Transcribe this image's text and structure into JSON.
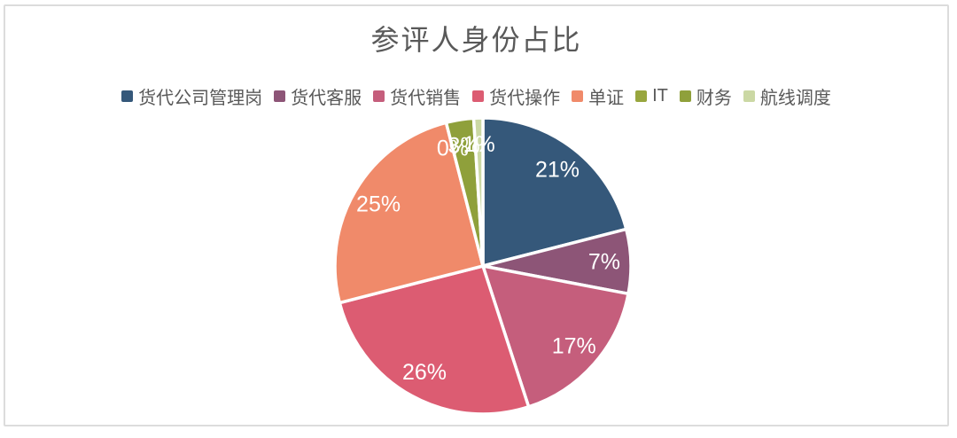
{
  "chart_data": {
    "type": "pie",
    "title": "参评人身份占比",
    "legend_position": "top",
    "direction": "clockwise",
    "start_angle_deg": 0,
    "data_labels": "percent-inside",
    "title_color": "#595959",
    "legend_text_color": "#595959",
    "label_color": "#ffffff",
    "slices": [
      {
        "label": "货代公司管理岗",
        "value": 21,
        "display": "21%",
        "color": "#35587A"
      },
      {
        "label": "货代客服",
        "value": 7,
        "display": "7%",
        "color": "#8D5577"
      },
      {
        "label": "货代销售",
        "value": 17,
        "display": "17%",
        "color": "#C55E7C"
      },
      {
        "label": "货代操作",
        "value": 26,
        "display": "26%",
        "color": "#DC5C72"
      },
      {
        "label": "单证",
        "value": 25,
        "display": "25%",
        "color": "#F08A6A"
      },
      {
        "label": "IT",
        "value": 0,
        "display": "0%",
        "color": "#98A63E"
      },
      {
        "label": "财务",
        "value": 3,
        "display": "3%",
        "color": "#8FA03B"
      },
      {
        "label": "航线调度",
        "value": 1,
        "display": "1%",
        "color": "#CBD8A4"
      }
    ]
  }
}
